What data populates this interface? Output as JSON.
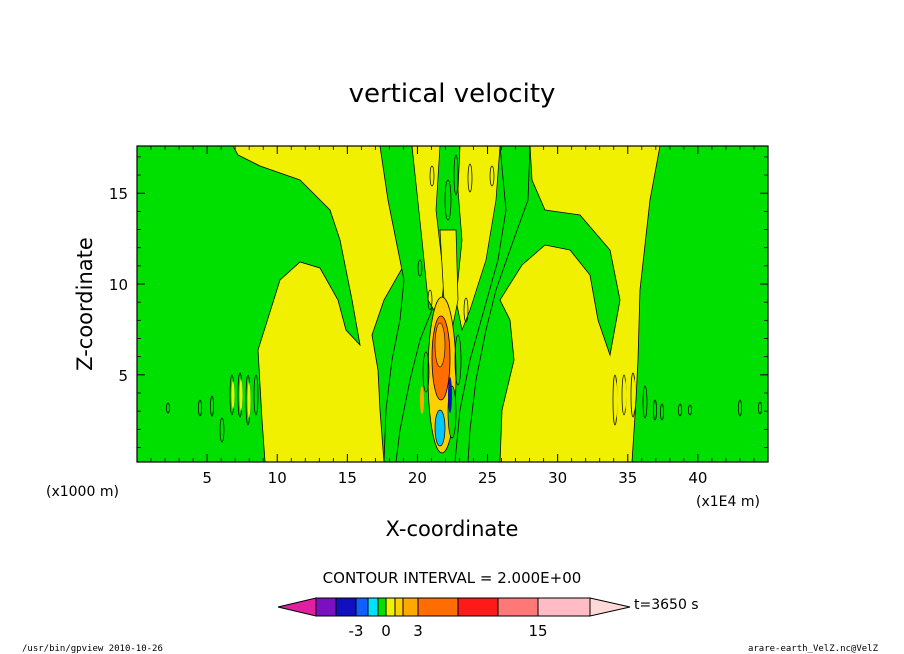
{
  "chart_data": {
    "type": "heatmap",
    "title": "vertical velocity",
    "xlabel": "X-coordinate",
    "ylabel": "Z-coordinate",
    "x_unit_left": "(x1000 m)",
    "x_unit_right": "(x1E4 m)",
    "xlim": [
      0,
      45
    ],
    "ylim": [
      0.2,
      17.6
    ],
    "x_ticks": [
      "5",
      "10",
      "15",
      "20",
      "25",
      "30",
      "35",
      "40"
    ],
    "y_ticks": [
      "5",
      "10",
      "15"
    ],
    "contour_interval_label": "CONTOUR INTERVAL = 2.000E+00",
    "time_label": "t=3650 s",
    "colorbar_ticks": [
      "-3",
      "0",
      "3",
      "15"
    ],
    "colorbar_colors": [
      "#e020a0",
      "#7a10c0",
      "#1010c0",
      "#1060ff",
      "#00e0ff",
      "#00e000",
      "#f0f000",
      "#ffd000",
      "#ffa800",
      "#ff6c00",
      "#ff1a1a",
      "#ff7878",
      "#ffbcc4",
      "#ffd8d8"
    ],
    "field_colors": {
      "background": "#00e000",
      "positive_low": "#f0f000",
      "positive_mid": "#ffa800",
      "positive_high": "#ff6c00",
      "negative": "#00c8ff"
    }
  },
  "footer": {
    "left": "/usr/bin/gpview   2010-10-26",
    "right": "arare-earth_VelZ.nc@VelZ"
  }
}
